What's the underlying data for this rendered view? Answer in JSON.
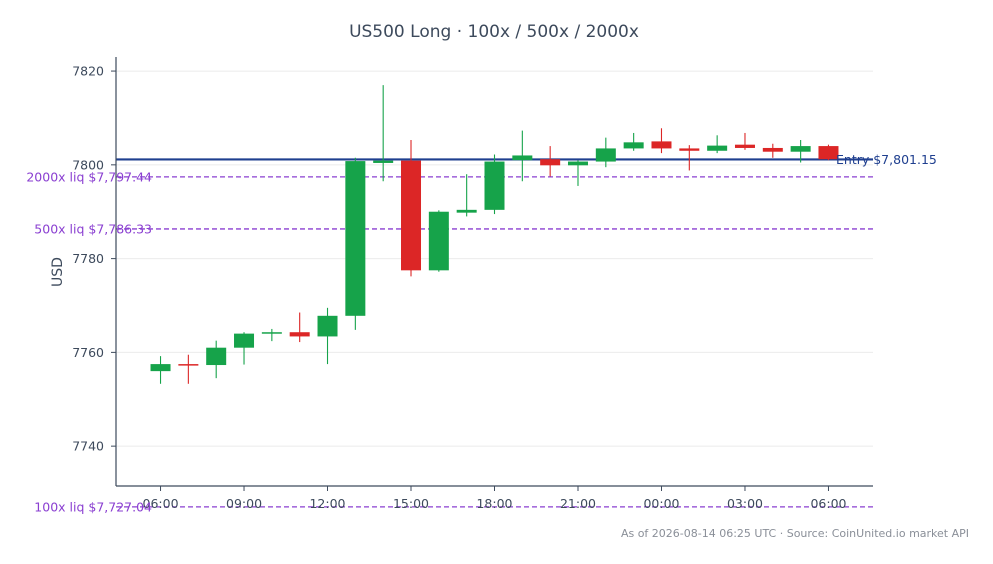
{
  "chart_data": {
    "type": "candlestick",
    "title": "US500 Long · 100x / 500x / 2000x",
    "ylabel": "USD",
    "xlabel": "",
    "ylim": [
      7731.5,
      7823
    ],
    "yticks": [
      7740,
      7760,
      7780,
      7800,
      7820
    ],
    "xlim": [
      -1.6,
      25.6
    ],
    "xticks": [
      {
        "at": 0,
        "label": "06:00"
      },
      {
        "at": 3,
        "label": "09:00"
      },
      {
        "at": 6,
        "label": "12:00"
      },
      {
        "at": 9,
        "label": "15:00"
      },
      {
        "at": 12,
        "label": "18:00"
      },
      {
        "at": 15,
        "label": "21:00"
      },
      {
        "at": 18,
        "label": "00:00"
      },
      {
        "at": 21,
        "label": "03:00"
      },
      {
        "at": 24,
        "label": "06:00"
      }
    ],
    "grid": true,
    "candles": [
      {
        "t": "06:00",
        "o": 7756.0,
        "h": 7759.2,
        "l": 7753.3,
        "c": 7757.5
      },
      {
        "t": "07:00",
        "o": 7757.5,
        "h": 7759.5,
        "l": 7753.3,
        "c": 7757.3
      },
      {
        "t": "08:00",
        "o": 7757.3,
        "h": 7762.5,
        "l": 7754.5,
        "c": 7761.0
      },
      {
        "t": "09:00",
        "o": 7761.0,
        "h": 7764.3,
        "l": 7757.4,
        "c": 7764.0
      },
      {
        "t": "10:00",
        "o": 7764.0,
        "h": 7765.0,
        "l": 7762.4,
        "c": 7764.3
      },
      {
        "t": "11:00",
        "o": 7764.3,
        "h": 7768.5,
        "l": 7762.2,
        "c": 7763.4
      },
      {
        "t": "12:00",
        "o": 7763.4,
        "h": 7769.5,
        "l": 7757.5,
        "c": 7767.8
      },
      {
        "t": "13:00",
        "o": 7767.8,
        "h": 7801.5,
        "l": 7764.8,
        "c": 7800.8
      },
      {
        "t": "14:00",
        "o": 7800.4,
        "h": 7817.0,
        "l": 7796.5,
        "c": 7800.9
      },
      {
        "t": "15:00",
        "o": 7800.9,
        "h": 7805.3,
        "l": 7776.2,
        "c": 7777.5
      },
      {
        "t": "16:00",
        "o": 7777.5,
        "h": 7790.3,
        "l": 7777.2,
        "c": 7790.0
      },
      {
        "t": "17:00",
        "o": 7789.8,
        "h": 7798.0,
        "l": 7789.0,
        "c": 7790.4
      },
      {
        "t": "18:00",
        "o": 7790.4,
        "h": 7802.2,
        "l": 7789.5,
        "c": 7800.7
      },
      {
        "t": "19:00",
        "o": 7801.0,
        "h": 7807.3,
        "l": 7796.5,
        "c": 7802.0
      },
      {
        "t": "20:00",
        "o": 7801.2,
        "h": 7804.0,
        "l": 7797.5,
        "c": 7799.9
      },
      {
        "t": "21:00",
        "o": 7799.9,
        "h": 7801.0,
        "l": 7795.5,
        "c": 7800.7
      },
      {
        "t": "22:00",
        "o": 7800.7,
        "h": 7805.8,
        "l": 7799.5,
        "c": 7803.5
      },
      {
        "t": "23:00",
        "o": 7803.5,
        "h": 7806.8,
        "l": 7803.0,
        "c": 7804.8
      },
      {
        "t": "00:00",
        "o": 7805.0,
        "h": 7807.8,
        "l": 7802.5,
        "c": 7803.5
      },
      {
        "t": "01:00",
        "o": 7803.5,
        "h": 7804.2,
        "l": 7798.8,
        "c": 7803.0
      },
      {
        "t": "02:00",
        "o": 7803.0,
        "h": 7806.3,
        "l": 7802.5,
        "c": 7804.1
      },
      {
        "t": "03:00",
        "o": 7804.3,
        "h": 7806.8,
        "l": 7803.2,
        "c": 7803.6
      },
      {
        "t": "04:00",
        "o": 7803.6,
        "h": 7804.5,
        "l": 7801.5,
        "c": 7802.8
      },
      {
        "t": "05:00",
        "o": 7802.8,
        "h": 7805.3,
        "l": 7800.5,
        "c": 7804.0
      },
      {
        "t": "06:00",
        "o": 7804.0,
        "h": 7804.3,
        "l": 7801.0,
        "c": 7801.2
      }
    ],
    "levels": [
      {
        "label": "Entry $7,801.15",
        "value": 7801.15,
        "color": "#1f3f8f",
        "style": "solid"
      },
      {
        "label": "2000x liq $7,797.44",
        "value": 7797.44,
        "color": "#8a3fd1",
        "style": "dashed"
      },
      {
        "label": "500x liq $7,786.33",
        "value": 7786.33,
        "color": "#8a3fd1",
        "style": "dashed"
      },
      {
        "label": "100x liq $7,727.04",
        "value": 7727.04,
        "color": "#8a3fd1",
        "style": "dashed"
      }
    ],
    "colors": {
      "up": "#16a34a",
      "down": "#dc2626",
      "axis": "#3d4a5c",
      "grid": "#ebebeb"
    }
  },
  "footer": {
    "source": "As of 2026-08-14 06:25 UTC · Source: CoinUnited.io market API"
  }
}
